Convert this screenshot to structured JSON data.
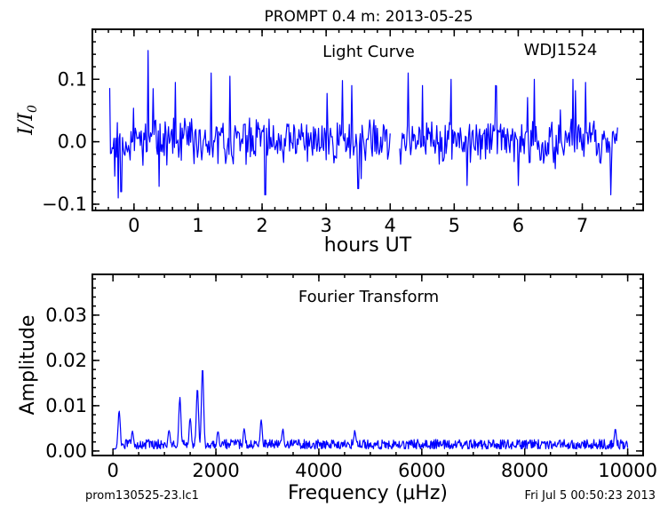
{
  "header": {
    "title": "PROMPT 0.4 m:  2013-05-25"
  },
  "footer": {
    "left": "prom130525-23.lc1",
    "right": "Fri Jul  5 00:50:23 2013"
  },
  "colors": {
    "series": "#0000ff",
    "axes": "#000000",
    "background": "#ffffff"
  },
  "chart_data": [
    {
      "type": "line",
      "title": "Light Curve",
      "annotation": "WDJ1524",
      "xlabel": "hours UT",
      "ylabel": "I/I0",
      "xlim": [
        -0.65,
        7.95
      ],
      "ylim": [
        -0.11,
        0.18
      ],
      "xticks": [
        0,
        1,
        2,
        3,
        4,
        5,
        6,
        7
      ],
      "yticks": [
        -0.1,
        0.0,
        0.1
      ],
      "ytick_labels": [
        "−0.1",
        "0.0",
        "0.1"
      ],
      "grid": false,
      "segments": [
        {
          "x_start": -0.38,
          "x_end": 4.0,
          "n": 330,
          "seed": 11,
          "spikes": [
            [
              -0.38,
              0.086
            ],
            [
              -0.3,
              -0.055
            ],
            [
              -0.25,
              -0.09
            ],
            [
              -0.2,
              -0.08
            ],
            [
              0.22,
              0.146
            ],
            [
              0.3,
              0.085
            ],
            [
              0.65,
              0.095
            ],
            [
              1.2,
              0.11
            ],
            [
              1.5,
              0.105
            ],
            [
              2.05,
              -0.085
            ],
            [
              3.25,
              0.098
            ],
            [
              3.4,
              0.09
            ],
            [
              3.5,
              -0.075
            ]
          ]
        },
        {
          "x_start": 4.15,
          "x_end": 7.55,
          "n": 260,
          "seed": 37,
          "spikes": [
            [
              4.28,
              0.11
            ],
            [
              4.5,
              0.09
            ],
            [
              4.95,
              0.1
            ],
            [
              5.2,
              -0.07
            ],
            [
              5.65,
              0.09
            ],
            [
              6.0,
              -0.07
            ],
            [
              6.25,
              0.1
            ],
            [
              6.85,
              0.1
            ],
            [
              7.05,
              0.095
            ],
            [
              7.45,
              -0.085
            ]
          ]
        }
      ],
      "amplitude": 0.028
    },
    {
      "type": "line",
      "title": "Fourier Transform",
      "xlabel": "Frequency (μHz)",
      "ylabel": "Amplitude",
      "xlim": [
        -400,
        10300
      ],
      "ylim": [
        -0.001,
        0.039
      ],
      "xticks": [
        0,
        2000,
        4000,
        6000,
        8000,
        10000
      ],
      "yticks": [
        0.0,
        0.01,
        0.02,
        0.03
      ],
      "ytick_labels": [
        "0.00",
        "0.01",
        "0.02",
        "0.03"
      ],
      "grid": false,
      "baseline_amplitude": 0.0017,
      "x_range": [
        0,
        10000
      ],
      "n": 900,
      "seed": 5,
      "peaks": [
        {
          "x": 120,
          "y": 0.0085
        },
        {
          "x": 380,
          "y": 0.004
        },
        {
          "x": 1090,
          "y": 0.0045
        },
        {
          "x": 1300,
          "y": 0.0115
        },
        {
          "x": 1500,
          "y": 0.007
        },
        {
          "x": 1640,
          "y": 0.0135
        },
        {
          "x": 1740,
          "y": 0.018
        },
        {
          "x": 2040,
          "y": 0.004
        },
        {
          "x": 2550,
          "y": 0.0045
        },
        {
          "x": 2880,
          "y": 0.0065
        },
        {
          "x": 3300,
          "y": 0.0045
        },
        {
          "x": 4700,
          "y": 0.0042
        },
        {
          "x": 9760,
          "y": 0.0045
        }
      ]
    }
  ]
}
